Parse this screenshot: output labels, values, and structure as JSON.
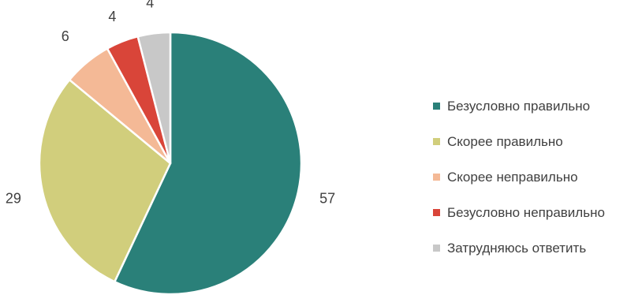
{
  "chart_data": {
    "type": "pie",
    "title": "",
    "categories": [
      "Безусловно правильно",
      "Скорее правильно",
      "Скорее неправильно",
      "Безусловно неправильно",
      "Затрудняюсь ответить"
    ],
    "values": [
      57,
      29,
      6,
      4,
      4
    ],
    "data_labels": [
      "57",
      "29",
      "6",
      "4",
      "4"
    ],
    "colors": [
      "#2A8079",
      "#D1CE7C",
      "#F4B996",
      "#D94539",
      "#C8C8C8"
    ],
    "legend_position": "right"
  }
}
